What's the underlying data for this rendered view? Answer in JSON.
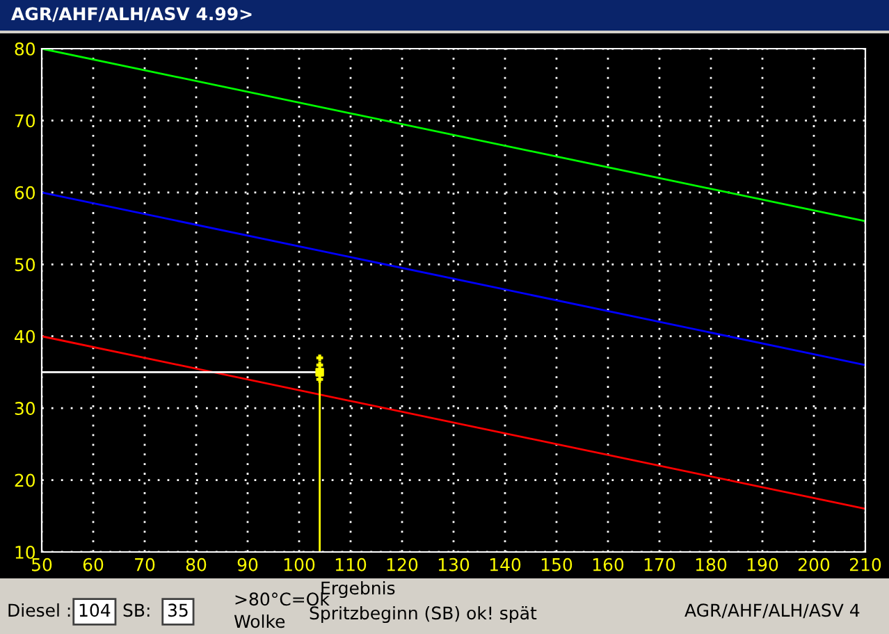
{
  "chart_data": {
    "type": "line",
    "title": "AGR/AHF/ALH/ASV 4.99>",
    "xlim": [
      50,
      210
    ],
    "xticks": [
      50,
      60,
      70,
      80,
      90,
      100,
      110,
      120,
      130,
      140,
      150,
      160,
      170,
      180,
      190,
      200,
      210
    ],
    "ylim": [
      10,
      80
    ],
    "yticks": [
      10,
      20,
      30,
      40,
      50,
      60,
      70,
      80
    ],
    "grid": true,
    "series": [
      {
        "color": "#00ff00",
        "x": [
          50,
          210
        ],
        "values": [
          80,
          56
        ]
      },
      {
        "color": "#0000ff",
        "x": [
          50,
          210
        ],
        "values": [
          60,
          36
        ]
      },
      {
        "color": "#ff0000",
        "x": [
          50,
          210
        ],
        "values": [
          40,
          16
        ]
      },
      {
        "color": "#ffffff",
        "x": [
          50,
          104
        ],
        "values": [
          35,
          35
        ]
      },
      {
        "color": "#ffff00",
        "x": [
          104,
          104
        ],
        "values": [
          10,
          35
        ]
      },
      {
        "type": "scatter",
        "marker": "cross",
        "color": "#ffff00",
        "x": [
          104,
          104,
          104
        ],
        "values": [
          37,
          36,
          34
        ]
      },
      {
        "type": "scatter",
        "marker": "square",
        "color": "#ffff00",
        "x": [
          104
        ],
        "values": [
          35
        ]
      }
    ],
    "annotations": [
      "Diesel :",
      "104",
      "SB:",
      "35",
      ">80°C=Ok",
      "Wolke",
      "Ergebnis",
      "Spritzbeginn (SB) ok! spät",
      "AGR/AHF/ALH/ASV 4"
    ]
  }
}
